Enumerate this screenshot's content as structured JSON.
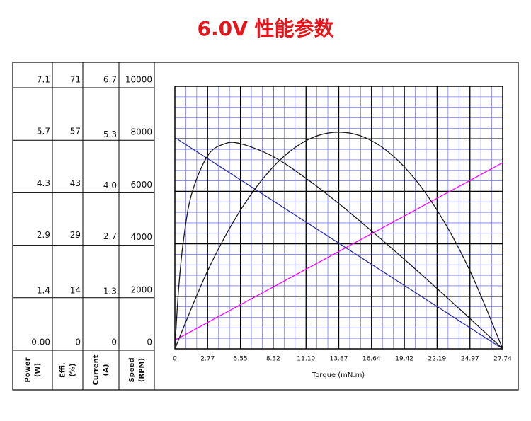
{
  "chart_data": {
    "type": "line",
    "title": "6.0V 性能参数",
    "x_label": "Torque (mN.m)",
    "xlim": [
      0,
      27.74
    ],
    "xticks": [
      0,
      2.77,
      5.55,
      8.32,
      {
        "value": 11.1,
        "label": "11.10"
      },
      13.87,
      16.64,
      19.42,
      22.19,
      24.97,
      27.74
    ],
    "axes": [
      {
        "name": "Power",
        "unit": "(W)",
        "ylim": [
          0,
          7.1
        ],
        "yticks": [
          {
            "value": 0,
            "label": "0.00"
          },
          1.4,
          2.9,
          4.3,
          5.7,
          7.1
        ]
      },
      {
        "name": "Effi.",
        "unit": "(%)",
        "ylim": [
          0,
          71
        ],
        "yticks": [
          0,
          14,
          29,
          43,
          57,
          71
        ]
      },
      {
        "name": "Current",
        "unit": "(A)",
        "ylim": [
          0,
          6.7
        ],
        "yticks": [
          0,
          1.3,
          2.7,
          {
            "value": 4,
            "label": "4.0"
          },
          5.3,
          6.7
        ]
      },
      {
        "name": "Speed",
        "unit": "(RPM)",
        "ylim": [
          0,
          10000
        ],
        "yticks": [
          0,
          2000,
          4000,
          6000,
          8000,
          10000
        ]
      }
    ],
    "grid": true,
    "series": [
      {
        "axis": 3,
        "color": "#2e2e9e",
        "x": [
          0,
          27.74
        ],
        "values": [
          8050,
          0
        ]
      },
      {
        "axis": 2,
        "color": "#ff00ff",
        "x": [
          0,
          27.74
        ],
        "values": [
          0.22,
          4.75
        ]
      },
      {
        "axis": 0,
        "color": "#1a1a1a",
        "x": [
          0,
          2.77,
          5.55,
          8.32,
          11.1,
          13.87,
          16.64,
          19.42,
          22.19,
          24.97,
          27.74
        ],
        "values": [
          0,
          2.11,
          3.75,
          4.92,
          5.63,
          5.86,
          5.63,
          4.92,
          3.75,
          2.11,
          0
        ]
      },
      {
        "axis": 1,
        "color": "#1a1a1a",
        "x": [
          0,
          0.3,
          0.7,
          1.4,
          2.77,
          4.16,
          5.55,
          8.32,
          11.1,
          13.87,
          16.64,
          19.42,
          22.19,
          24.97,
          27.74
        ],
        "values": [
          0,
          15.5,
          28.7,
          41.7,
          52.2,
          55.4,
          55.5,
          52,
          46.1,
          39.3,
          31.9,
          24.2,
          16.3,
          8.2,
          0
        ]
      }
    ]
  }
}
